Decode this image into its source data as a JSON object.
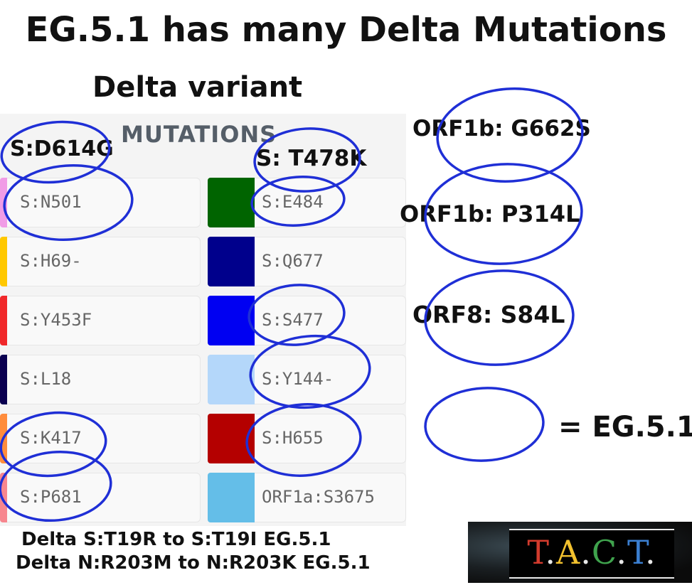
{
  "title": "EG.5.1 has many Delta Mutations",
  "subtitle": "Delta variant",
  "mutations_header": "MUTATIONS",
  "callouts": {
    "s_d614g": "S:D614G",
    "s_t478k": "S: T478K",
    "orf1b_g662s": "ORF1b: G662S",
    "orf1b_p314l": "ORF1b: P314L",
    "orf8_s84l": "ORF8: S84L"
  },
  "legend_text": "= EG.5.1",
  "mutations": {
    "left": [
      {
        "label": "S:N501",
        "color": "#f19ce6"
      },
      {
        "label": "S:H69-",
        "color": "#ffc800"
      },
      {
        "label": "S:Y453F",
        "color": "#f0282a"
      },
      {
        "label": "S:L18",
        "color": "#0a0050"
      },
      {
        "label": "S:K417",
        "color": "#ff8c3c"
      },
      {
        "label": "S:P681",
        "color": "#f7868e"
      }
    ],
    "right": [
      {
        "label": "S:E484",
        "color": "#006400"
      },
      {
        "label": "S:Q677",
        "color": "#00008c"
      },
      {
        "label": "S:S477",
        "color": "#0000f2"
      },
      {
        "label": "S:Y144-",
        "color": "#b4d7fa"
      },
      {
        "label": "S:H655",
        "color": "#b40000"
      },
      {
        "label": "ORF1a:S3675",
        "color": "#64bee8"
      }
    ]
  },
  "notes": [
    "Delta S:T19R to S:T19I EG.5.1",
    "Delta N:R203M to N:R203K EG.5.1"
  ],
  "logo": {
    "text": "T.A.C.T.",
    "letters": [
      {
        "char": "T",
        "color": "#d23b2d"
      },
      {
        "char": ".",
        "color": "#e8e8e8"
      },
      {
        "char": "A",
        "color": "#f2c12e"
      },
      {
        "char": ".",
        "color": "#e8e8e8"
      },
      {
        "char": "C",
        "color": "#3fa34d"
      },
      {
        "char": ".",
        "color": "#e8e8e8"
      },
      {
        "char": "T",
        "color": "#3b7fd1"
      },
      {
        "char": ".",
        "color": "#e8e8e8"
      }
    ]
  },
  "ink_color": "#1f2fd6"
}
